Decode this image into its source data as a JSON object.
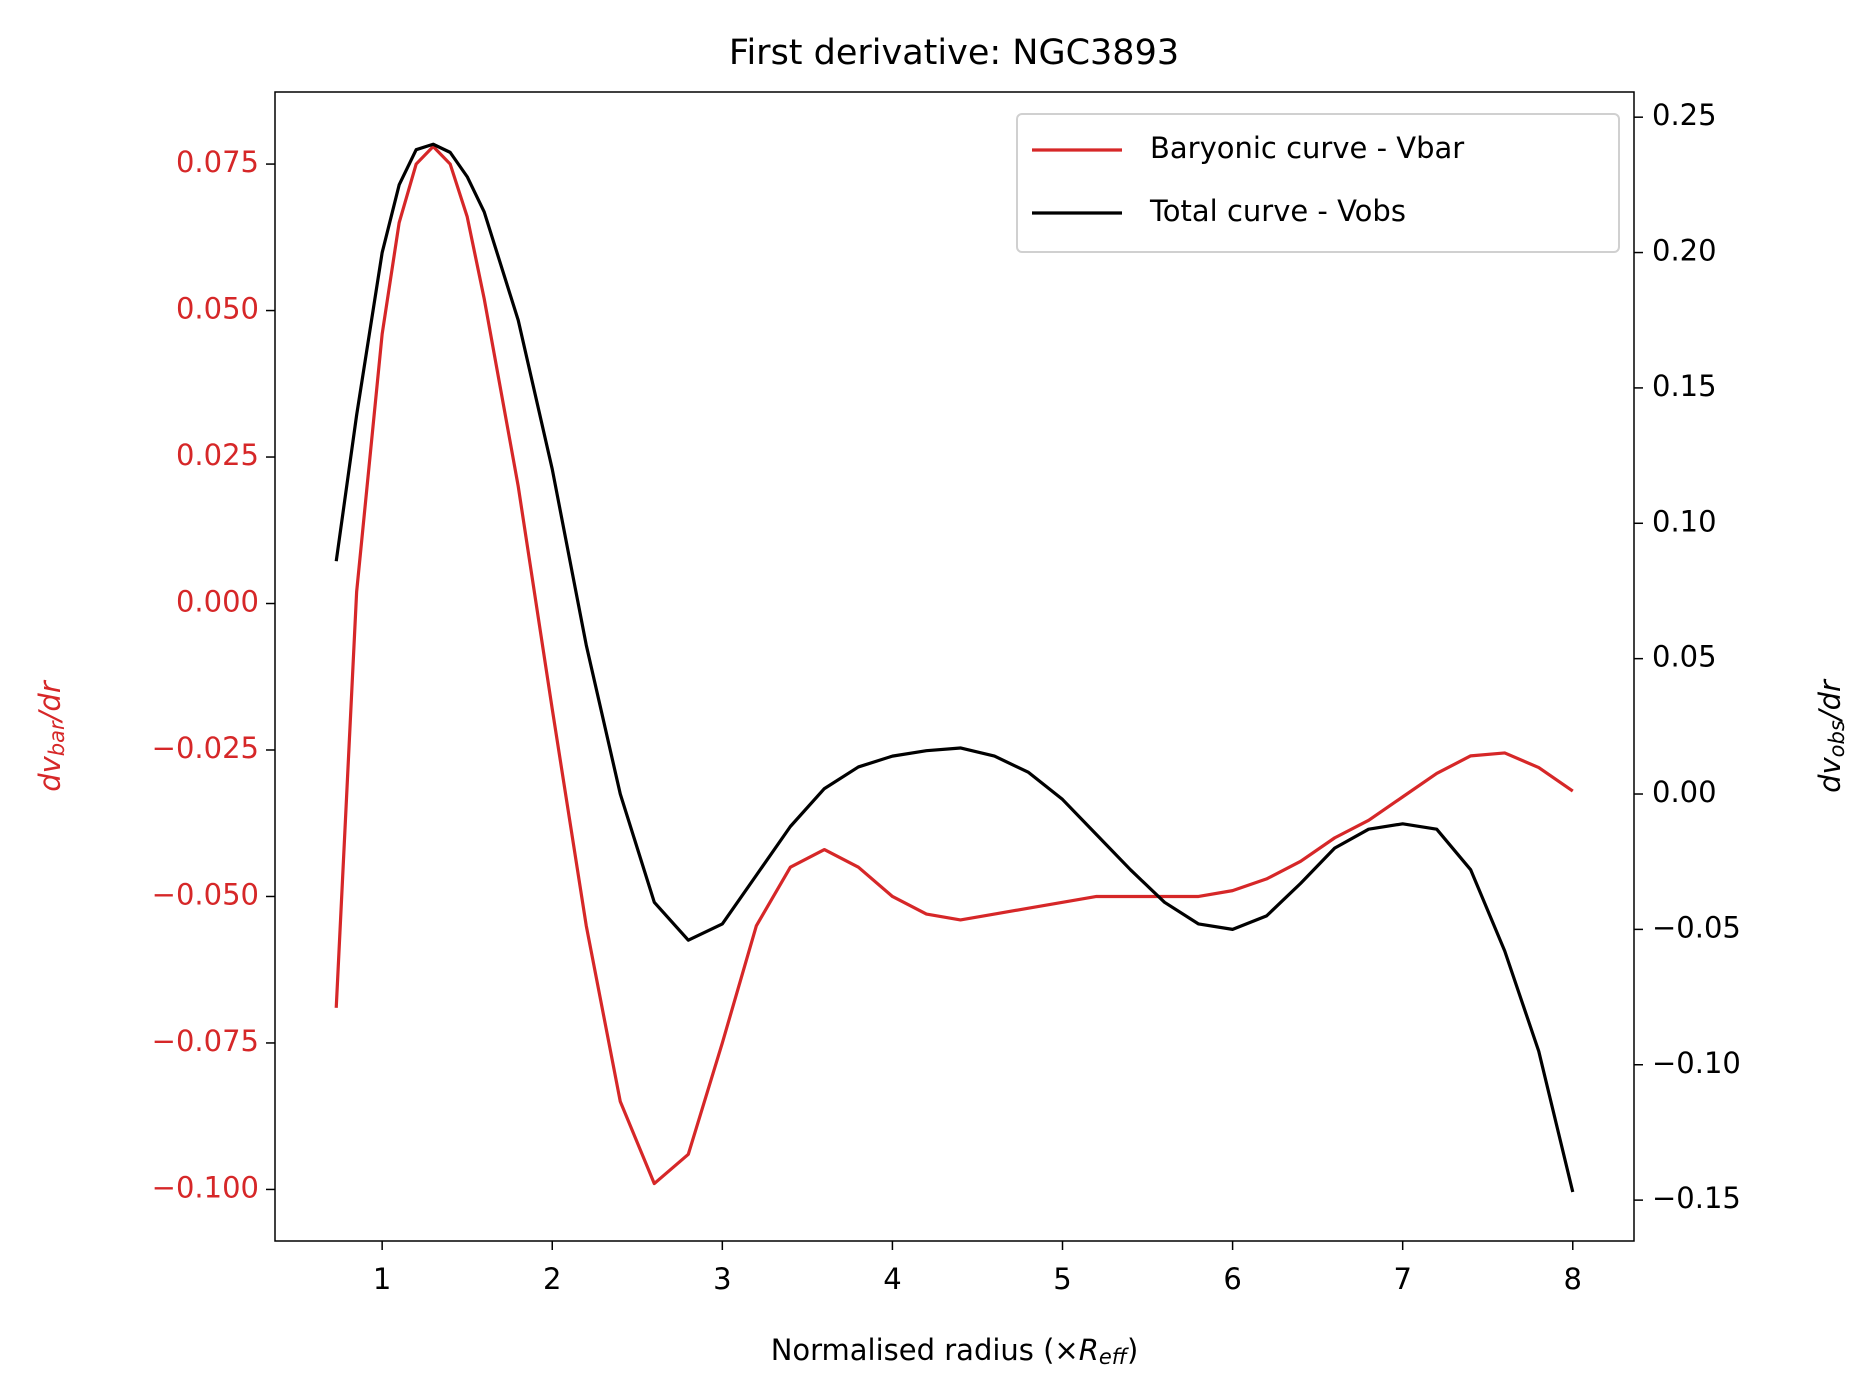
{
  "chart_data": {
    "type": "line",
    "title": "First derivative: NGC3893",
    "xlabel": [
      "Normalised radius (×",
      "R",
      "eff",
      ")"
    ],
    "ylabel": [
      "dv",
      "bar",
      "/dr"
    ],
    "y2label": [
      "dv",
      "obs",
      "/dr"
    ],
    "x": [
      0.73,
      0.85,
      1.0,
      1.1,
      1.2,
      1.3,
      1.4,
      1.5,
      1.6,
      1.8,
      2.0,
      2.2,
      2.4,
      2.6,
      2.8,
      3.0,
      3.2,
      3.4,
      3.6,
      3.8,
      4.0,
      4.2,
      4.4,
      4.6,
      4.8,
      5.0,
      5.2,
      5.4,
      5.6,
      5.8,
      6.0,
      6.2,
      6.4,
      6.6,
      6.8,
      7.0,
      7.2,
      7.4,
      7.6,
      7.8,
      8.0
    ],
    "series": [
      {
        "name": "Baryonic curve - Vbar",
        "color": "#d62728",
        "axis": "y",
        "values": [
          -0.069,
          0.002,
          0.046,
          0.065,
          0.075,
          0.078,
          0.075,
          0.066,
          0.052,
          0.02,
          -0.018,
          -0.055,
          -0.085,
          -0.099,
          -0.094,
          -0.075,
          -0.055,
          -0.045,
          -0.042,
          -0.045,
          -0.05,
          -0.053,
          -0.054,
          -0.053,
          -0.052,
          -0.051,
          -0.05,
          -0.05,
          -0.05,
          -0.05,
          -0.049,
          -0.047,
          -0.044,
          -0.04,
          -0.037,
          -0.033,
          -0.029,
          -0.026,
          -0.0255,
          -0.028,
          -0.032
        ]
      },
      {
        "name": "Total curve - Vobs",
        "color": "#000000",
        "axis": "y2",
        "values": [
          0.086,
          0.14,
          0.2,
          0.225,
          0.238,
          0.24,
          0.237,
          0.228,
          0.215,
          0.175,
          0.12,
          0.055,
          0.0,
          -0.04,
          -0.054,
          -0.048,
          -0.03,
          -0.012,
          0.002,
          0.01,
          0.014,
          0.016,
          0.017,
          0.014,
          0.008,
          -0.002,
          -0.015,
          -0.028,
          -0.04,
          -0.048,
          -0.05,
          -0.045,
          -0.033,
          -0.02,
          -0.013,
          -0.011,
          -0.013,
          -0.028,
          -0.058,
          -0.095,
          -0.147
        ]
      }
    ],
    "xlim": [
      0.37,
      8.36
    ],
    "xticks": [
      1,
      2,
      3,
      4,
      5,
      6,
      7,
      8
    ],
    "ylim": [
      -0.1088,
      0.0873
    ],
    "yticks": [
      {
        "value": -0.1,
        "label": "−0.100"
      },
      {
        "value": -0.075,
        "label": "−0.075"
      },
      {
        "value": -0.05,
        "label": "−0.050"
      },
      {
        "value": -0.025,
        "label": "−0.025"
      },
      {
        "value": 0,
        "label": "0.000"
      },
      {
        "value": 0.025,
        "label": "0.025"
      },
      {
        "value": 0.05,
        "label": "0.050"
      },
      {
        "value": 0.075,
        "label": "0.075"
      }
    ],
    "y2lim": [
      -0.1651,
      0.2593
    ],
    "y2ticks": [
      {
        "value": -0.15,
        "label": "−0.15"
      },
      {
        "value": -0.1,
        "label": "−0.10"
      },
      {
        "value": -0.05,
        "label": "−0.05"
      },
      {
        "value": 0,
        "label": "0.00"
      },
      {
        "value": 0.05,
        "label": "0.05"
      },
      {
        "value": 0.1,
        "label": "0.10"
      },
      {
        "value": 0.15,
        "label": "0.15"
      },
      {
        "value": 0.2,
        "label": "0.20"
      },
      {
        "value": 0.25,
        "label": "0.25"
      }
    ],
    "grid": false,
    "legend": "upper right"
  }
}
